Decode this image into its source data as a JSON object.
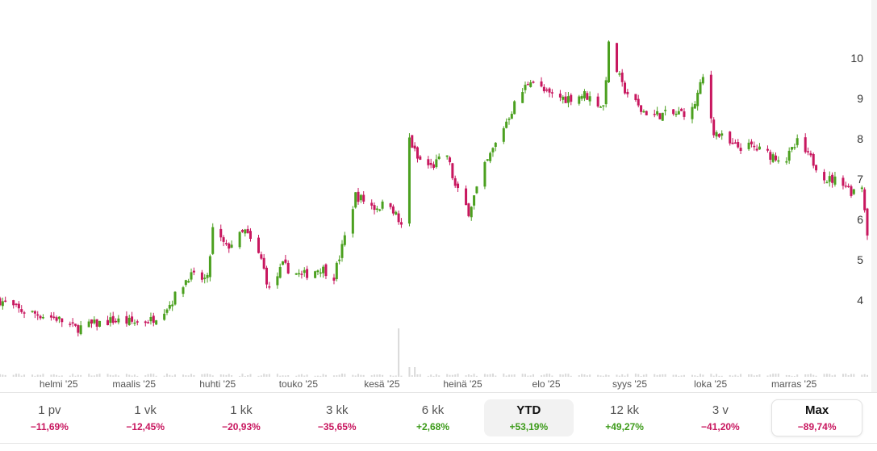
{
  "colors": {
    "up": "#4ba01f",
    "down": "#c8175f",
    "volume": "#d9d9d9",
    "axis_text": "#333333"
  },
  "chart_data": {
    "type": "candlestick",
    "y_ticks": [
      "4",
      "5",
      "6",
      "7",
      "8",
      "9",
      "10"
    ],
    "ylim": [
      2.2,
      11.0
    ],
    "x_tick_labels": [
      "helmi '25",
      "maalis '25",
      "huhti '25",
      "touko '25",
      "kesä '25",
      "heinä '25",
      "elo '25",
      "syys '25",
      "loka '25",
      "marras '25"
    ],
    "grid": false,
    "series_close_path": [
      [
        "2025-01-15",
        4.0
      ],
      [
        "2025-01-22",
        3.75
      ],
      [
        "2025-01-29",
        3.65
      ],
      [
        "2025-02-05",
        3.55
      ],
      [
        "2025-02-12",
        3.3
      ],
      [
        "2025-02-19",
        3.4
      ],
      [
        "2025-02-26",
        3.5
      ],
      [
        "2025-03-05",
        3.45
      ],
      [
        "2025-03-12",
        3.5
      ],
      [
        "2025-03-19",
        3.9
      ],
      [
        "2025-03-26",
        4.6
      ],
      [
        "2025-04-02",
        4.5
      ],
      [
        "2025-04-04",
        5.75
      ],
      [
        "2025-04-09",
        5.3
      ],
      [
        "2025-04-16",
        5.7
      ],
      [
        "2025-04-22",
        5.0
      ],
      [
        "2025-04-25",
        4.25
      ],
      [
        "2025-04-30",
        4.85
      ],
      [
        "2025-05-07",
        4.6
      ],
      [
        "2025-05-14",
        4.8
      ],
      [
        "2025-05-19",
        4.6
      ],
      [
        "2025-05-22",
        5.3
      ],
      [
        "2025-05-27",
        6.6
      ],
      [
        "2025-06-03",
        6.3
      ],
      [
        "2025-06-09",
        6.4
      ],
      [
        "2025-06-13",
        5.8
      ],
      [
        "2025-06-16",
        8.0
      ],
      [
        "2025-06-19",
        7.5
      ],
      [
        "2025-06-24",
        7.3
      ],
      [
        "2025-06-30",
        7.6
      ],
      [
        "2025-07-03",
        6.8
      ],
      [
        "2025-07-08",
        6.2
      ],
      [
        "2025-07-14",
        7.3
      ],
      [
        "2025-07-21",
        8.3
      ],
      [
        "2025-07-25",
        8.85
      ],
      [
        "2025-07-31",
        9.5
      ],
      [
        "2025-08-06",
        9.1
      ],
      [
        "2025-08-13",
        9.0
      ],
      [
        "2025-08-20",
        9.1
      ],
      [
        "2025-08-27",
        8.8
      ],
      [
        "2025-08-29",
        10.3
      ],
      [
        "2025-09-03",
        9.3
      ],
      [
        "2025-09-10",
        8.7
      ],
      [
        "2025-09-15",
        8.6
      ],
      [
        "2025-09-22",
        8.6
      ],
      [
        "2025-09-29",
        8.7
      ],
      [
        "2025-10-03",
        9.5
      ],
      [
        "2025-10-07",
        8.2
      ],
      [
        "2025-10-14",
        7.8
      ],
      [
        "2025-10-21",
        7.8
      ],
      [
        "2025-10-28",
        7.6
      ],
      [
        "2025-11-03",
        7.5
      ],
      [
        "2025-11-07",
        7.9
      ],
      [
        "2025-11-12",
        7.5
      ],
      [
        "2025-11-18",
        7.0
      ],
      [
        "2025-11-24",
        6.95
      ],
      [
        "2025-11-27",
        6.7
      ],
      [
        "2025-12-01",
        6.85
      ],
      [
        "2025-12-03",
        5.7
      ]
    ],
    "volume_spikes": [
      [
        "2025-06-12",
        60
      ],
      [
        "2025-06-16",
        12
      ],
      [
        "2025-06-18",
        12
      ]
    ]
  },
  "range_selector": [
    {
      "label": "1 pv",
      "change": "−11,69%",
      "direction": "down",
      "state": "normal"
    },
    {
      "label": "1 vk",
      "change": "−12,45%",
      "direction": "down",
      "state": "normal"
    },
    {
      "label": "1 kk",
      "change": "−20,93%",
      "direction": "down",
      "state": "normal"
    },
    {
      "label": "3 kk",
      "change": "−35,65%",
      "direction": "down",
      "state": "normal"
    },
    {
      "label": "6 kk",
      "change": "+2,68%",
      "direction": "up",
      "state": "normal"
    },
    {
      "label": "YTD",
      "change": "+53,19%",
      "direction": "up",
      "state": "selected"
    },
    {
      "label": "12 kk",
      "change": "+49,27%",
      "direction": "up",
      "state": "normal"
    },
    {
      "label": "3 v",
      "change": "−41,20%",
      "direction": "down",
      "state": "normal"
    },
    {
      "label": "Max",
      "change": "−89,74%",
      "direction": "down",
      "state": "active"
    }
  ]
}
